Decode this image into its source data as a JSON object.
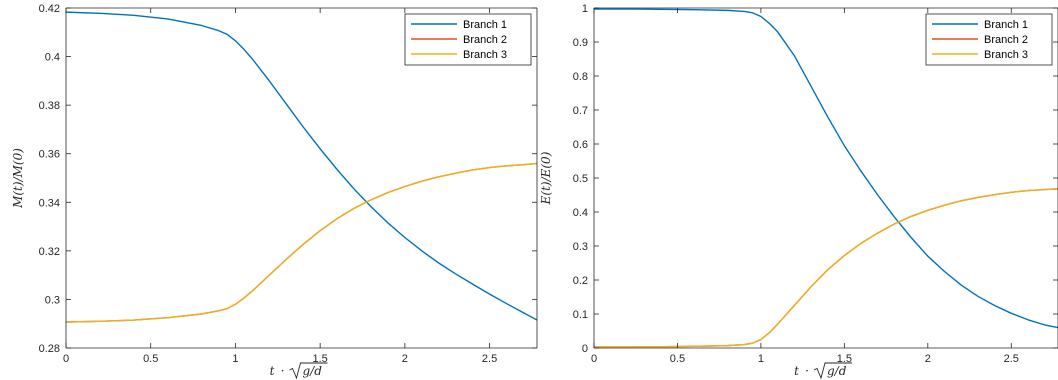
{
  "chart_data": [
    {
      "type": "line",
      "title": "",
      "xlabel": "t · √(g/d)",
      "xlabel_parts": {
        "t": "t",
        "dot": "·",
        "frac": "g/d"
      },
      "ylabel": "M(t)/M(0)",
      "xlim": [
        0,
        2.78
      ],
      "ylim": [
        0.28,
        0.42
      ],
      "xticks": [
        0,
        0.5,
        1,
        1.5,
        2,
        2.5
      ],
      "xtick_labels": [
        "0",
        "0.5",
        "1",
        "1.5",
        "2",
        "2.5"
      ],
      "yticks": [
        0.28,
        0.3,
        0.32,
        0.34,
        0.36,
        0.38,
        0.4,
        0.42
      ],
      "ytick_labels": [
        "0.28",
        "0.3",
        "0.32",
        "0.34",
        "0.36",
        "0.38",
        "0.4",
        "0.42"
      ],
      "grid": false,
      "legend_position": "top-right",
      "series": [
        {
          "name": "Branch 1",
          "color": "#0072BD",
          "x": [
            0,
            0.2,
            0.4,
            0.6,
            0.8,
            0.9,
            0.95,
            1.0,
            1.05,
            1.1,
            1.2,
            1.3,
            1.4,
            1.5,
            1.6,
            1.7,
            1.8,
            1.9,
            2.0,
            2.1,
            2.2,
            2.3,
            2.4,
            2.5,
            2.6,
            2.7,
            2.78
          ],
          "y": [
            0.4183,
            0.4178,
            0.417,
            0.4155,
            0.4128,
            0.4107,
            0.4092,
            0.4065,
            0.403,
            0.399,
            0.39,
            0.3805,
            0.371,
            0.362,
            0.3535,
            0.3455,
            0.3382,
            0.3315,
            0.3255,
            0.32,
            0.315,
            0.3105,
            0.3063,
            0.3022,
            0.2983,
            0.2945,
            0.2915
          ]
        },
        {
          "name": "Branch 2",
          "color": "#D95319",
          "x": [
            0,
            0.2,
            0.4,
            0.6,
            0.8,
            0.9,
            0.95,
            1.0,
            1.05,
            1.1,
            1.2,
            1.3,
            1.4,
            1.5,
            1.6,
            1.7,
            1.8,
            1.9,
            2.0,
            2.1,
            2.2,
            2.3,
            2.4,
            2.5,
            2.6,
            2.7,
            2.78
          ],
          "y": [
            0.2907,
            0.291,
            0.2915,
            0.2925,
            0.294,
            0.2953,
            0.2962,
            0.298,
            0.3005,
            0.3035,
            0.31,
            0.3165,
            0.3227,
            0.3283,
            0.3333,
            0.3375,
            0.341,
            0.344,
            0.3465,
            0.3487,
            0.3505,
            0.352,
            0.3533,
            0.3543,
            0.355,
            0.3555,
            0.356
          ]
        },
        {
          "name": "Branch 3",
          "color": "#EDB120",
          "x": [
            0,
            0.2,
            0.4,
            0.6,
            0.8,
            0.9,
            0.95,
            1.0,
            1.05,
            1.1,
            1.2,
            1.3,
            1.4,
            1.5,
            1.6,
            1.7,
            1.8,
            1.9,
            2.0,
            2.1,
            2.2,
            2.3,
            2.4,
            2.5,
            2.6,
            2.7,
            2.78
          ],
          "y": [
            0.2907,
            0.291,
            0.2915,
            0.2925,
            0.294,
            0.2953,
            0.2962,
            0.298,
            0.3005,
            0.3035,
            0.31,
            0.3165,
            0.3227,
            0.3283,
            0.3333,
            0.3375,
            0.341,
            0.344,
            0.3465,
            0.3487,
            0.3505,
            0.352,
            0.3533,
            0.3543,
            0.355,
            0.3555,
            0.356
          ]
        }
      ]
    },
    {
      "type": "line",
      "title": "",
      "xlabel": "t · √(g/d)",
      "xlabel_parts": {
        "t": "t",
        "dot": "·",
        "frac": "g/d"
      },
      "ylabel": "E(t)/E(0)",
      "xlim": [
        0,
        2.78
      ],
      "ylim": [
        0,
        1
      ],
      "xticks": [
        0,
        0.5,
        1,
        1.5,
        2,
        2.5
      ],
      "xtick_labels": [
        "0",
        "0.5",
        "1",
        "1.5",
        "2",
        "2.5"
      ],
      "yticks": [
        0,
        0.1,
        0.2,
        0.3,
        0.4,
        0.5,
        0.6,
        0.7,
        0.8,
        0.9,
        1
      ],
      "ytick_labels": [
        "0",
        "0.1",
        "0.2",
        "0.3",
        "0.4",
        "0.5",
        "0.6",
        "0.7",
        "0.8",
        "0.9",
        "1"
      ],
      "grid": false,
      "legend_position": "top-right",
      "series": [
        {
          "name": "Branch 1",
          "color": "#0072BD",
          "x": [
            0,
            0.2,
            0.4,
            0.6,
            0.8,
            0.9,
            0.95,
            1.0,
            1.05,
            1.1,
            1.2,
            1.3,
            1.4,
            1.5,
            1.6,
            1.7,
            1.8,
            1.9,
            2.0,
            2.1,
            2.2,
            2.3,
            2.4,
            2.5,
            2.6,
            2.7,
            2.78
          ],
          "y": [
            0.997,
            0.997,
            0.996,
            0.995,
            0.993,
            0.99,
            0.986,
            0.975,
            0.955,
            0.93,
            0.86,
            0.77,
            0.68,
            0.595,
            0.52,
            0.45,
            0.385,
            0.325,
            0.27,
            0.225,
            0.185,
            0.152,
            0.125,
            0.102,
            0.083,
            0.068,
            0.06
          ]
        },
        {
          "name": "Branch 2",
          "color": "#D95319",
          "x": [
            0,
            0.2,
            0.4,
            0.6,
            0.8,
            0.9,
            0.95,
            1.0,
            1.05,
            1.1,
            1.2,
            1.3,
            1.4,
            1.5,
            1.6,
            1.7,
            1.8,
            1.9,
            2.0,
            2.1,
            2.2,
            2.3,
            2.4,
            2.5,
            2.6,
            2.7,
            2.78
          ],
          "y": [
            0.003,
            0.003,
            0.004,
            0.005,
            0.007,
            0.01,
            0.014,
            0.025,
            0.045,
            0.07,
            0.125,
            0.18,
            0.23,
            0.272,
            0.308,
            0.338,
            0.365,
            0.387,
            0.405,
            0.42,
            0.433,
            0.443,
            0.451,
            0.458,
            0.463,
            0.466,
            0.468
          ]
        },
        {
          "name": "Branch 3",
          "color": "#EDB120",
          "x": [
            0,
            0.2,
            0.4,
            0.6,
            0.8,
            0.9,
            0.95,
            1.0,
            1.05,
            1.1,
            1.2,
            1.3,
            1.4,
            1.5,
            1.6,
            1.7,
            1.8,
            1.9,
            2.0,
            2.1,
            2.2,
            2.3,
            2.4,
            2.5,
            2.6,
            2.7,
            2.78
          ],
          "y": [
            0.003,
            0.003,
            0.004,
            0.005,
            0.007,
            0.01,
            0.014,
            0.025,
            0.045,
            0.07,
            0.125,
            0.18,
            0.23,
            0.272,
            0.308,
            0.338,
            0.365,
            0.387,
            0.405,
            0.42,
            0.433,
            0.443,
            0.451,
            0.458,
            0.463,
            0.466,
            0.468
          ]
        }
      ]
    }
  ]
}
